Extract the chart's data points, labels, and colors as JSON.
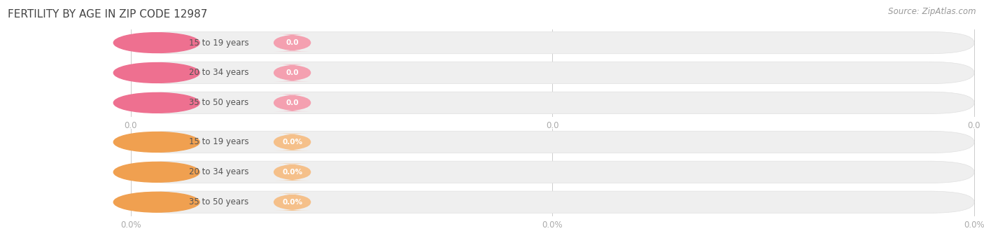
{
  "title": "FERTILITY BY AGE IN ZIP CODE 12987",
  "source": "Source: ZipAtlas.com",
  "rows_top": [
    {
      "label": "15 to 19 years",
      "value": 0.0,
      "display": "0.0"
    },
    {
      "label": "20 to 34 years",
      "value": 0.0,
      "display": "0.0"
    },
    {
      "label": "35 to 50 years",
      "value": 0.0,
      "display": "0.0"
    }
  ],
  "rows_bottom": [
    {
      "label": "15 to 19 years",
      "value": 0.0,
      "display": "0.0%"
    },
    {
      "label": "20 to 34 years",
      "value": 0.0,
      "display": "0.0%"
    },
    {
      "label": "35 to 50 years",
      "value": 0.0,
      "display": "0.0%"
    }
  ],
  "bar_color_top": "#f4a0b0",
  "bar_color_bottom": "#f5c08a",
  "bar_circle_color_top": "#ee7090",
  "bar_circle_color_bottom": "#f0a050",
  "bar_bg_color": "#efefef",
  "bar_bg_edge_color": "#e0e0e0",
  "bg_color": "#ffffff",
  "title_color": "#444444",
  "label_color": "#555555",
  "value_color": "#ffffff",
  "axis_tick_color": "#aaaaaa",
  "source_color": "#999999",
  "title_fontsize": 11,
  "label_fontsize": 8.5,
  "value_fontsize": 7.5,
  "axis_fontsize": 8.5,
  "source_fontsize": 8.5
}
